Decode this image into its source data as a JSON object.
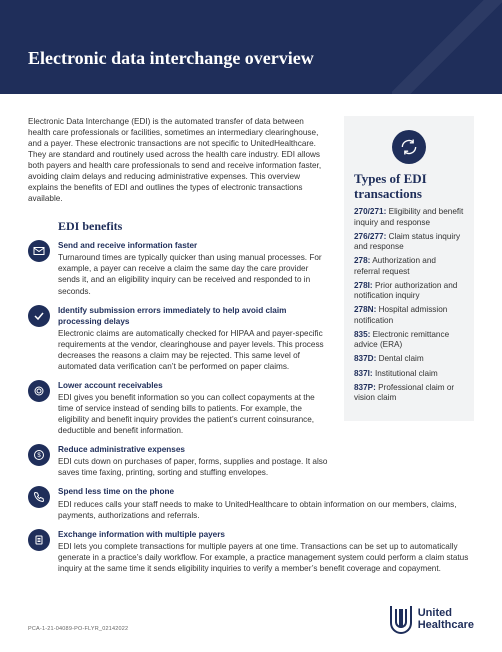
{
  "colors": {
    "brand": "#1f2e5a",
    "sidebar_bg": "#f2f3f4",
    "body_text": "#333333",
    "footnote": "#666666"
  },
  "hero": {
    "title": "Electronic data interchange overview"
  },
  "intro": "Electronic Data Interchange (EDI) is the automated transfer of data between health care professionals or facilities, sometimes an intermediary clearinghouse, and a payer. These electronic transactions are not specific to UnitedHealthcare. They are standard and routinely used across the health care industry. EDI allows both payers and health care professionals to send and receive information faster, avoiding claim delays and reducing administrative expenses. This overview explains the benefits of EDI and outlines the types of electronic transactions available.",
  "benefits": {
    "heading": "EDI benefits",
    "items": [
      {
        "icon": "envelope-icon",
        "title": "Send and receive information faster",
        "body": "Turnaround times are typically quicker than using manual processes. For example, a payer can receive a claim the same day the care provider sends it, and an eligibility inquiry can be received and responded to in seconds."
      },
      {
        "icon": "check-icon",
        "title": "Identify submission errors immediately to help avoid claim processing delays",
        "body": "Electronic claims are automatically checked for HIPAA and payer-specific requirements at the vendor, clearinghouse and payer levels. This process decreases the reasons a claim may be rejected. This same level of automated data verification can’t be performed on paper claims."
      },
      {
        "icon": "coin-icon",
        "title": "Lower account receivables",
        "body": "EDI gives you benefit information so you can collect copayments at the time of service instead of sending bills to patients. For example, the eligibility and benefit inquiry provides the patient’s current coinsurance, deductible and benefit information."
      },
      {
        "icon": "dollar-icon",
        "title": "Reduce administrative expenses",
        "body": "EDI cuts down on purchases of paper, forms, supplies and postage. It also saves time faxing, printing, sorting and stuffing envelopes."
      },
      {
        "icon": "phone-icon",
        "title": "Spend less time on the phone",
        "body": "EDI reduces calls your staff needs to make to UnitedHealthcare to obtain information on our members, claims, payments, authorizations and referrals.",
        "wide": true
      },
      {
        "icon": "clipboard-icon",
        "title": "Exchange information with multiple payers",
        "body": "EDI lets you complete transactions for multiple payers at one time. Transactions can be set up to automatically generate in a practice’s daily workflow. For example, a practice management system could perform a claim status inquiry at the same time it sends eligibility inquiries to verify a member’s benefit coverage and copayment.",
        "wide": true
      }
    ]
  },
  "sidebar": {
    "icon": "cycle-arrows-icon",
    "heading": "Types of EDI transactions",
    "transactions": [
      {
        "code": "270/271:",
        "label": "Eligibility and benefit inquiry and response"
      },
      {
        "code": "276/277:",
        "label": "Claim status inquiry and response"
      },
      {
        "code": "278:",
        "label": "Authorization and referral request"
      },
      {
        "code": "278I:",
        "label": "Prior authorization and notification inquiry"
      },
      {
        "code": "278N:",
        "label": "Hospital admission notification"
      },
      {
        "code": "835:",
        "label": "Electronic remittance advice (ERA)"
      },
      {
        "code": "837D:",
        "label": "Dental claim"
      },
      {
        "code": "837I:",
        "label": "Institutional claim"
      },
      {
        "code": "837P:",
        "label": "Professional claim or vision claim"
      }
    ]
  },
  "footer": {
    "code": "PCA-1-21-04089-PO-FLYR_02142022",
    "logo_line1": "United",
    "logo_line2": "Healthcare"
  }
}
